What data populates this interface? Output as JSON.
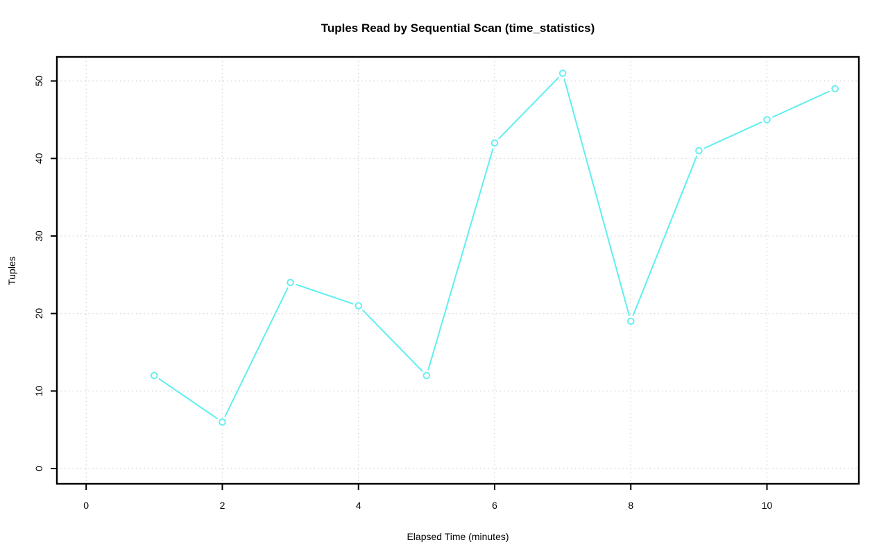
{
  "chart_data": {
    "type": "line",
    "title": "Tuples Read by Sequential Scan (time_statistics)",
    "xlabel": "Elapsed Time (minutes)",
    "ylabel": "Tuples",
    "series": [
      {
        "name": "tuples_read",
        "x": [
          1,
          2,
          3,
          4,
          5,
          6,
          7,
          8,
          9,
          10,
          11
        ],
        "y": [
          12,
          6,
          24,
          21,
          12,
          42,
          51,
          19,
          41,
          45,
          49
        ]
      }
    ],
    "xticks": [
      0,
      2,
      4,
      6,
      8,
      10
    ],
    "yticks": [
      0,
      10,
      20,
      30,
      40,
      50
    ],
    "xlim": [
      -0.43,
      11.35
    ],
    "ylim": [
      -1.97,
      53.1
    ],
    "grid": "dotted",
    "legend_position": "none",
    "marker": "open-circle",
    "line_style": "segments-with-point-gaps",
    "colors": {
      "line": "#5EEFEF",
      "marker_stroke": "#5EEFEF",
      "marker_fill": "#FFFFFF",
      "grid": "#D6D6D6",
      "axis": "#000000",
      "text": "#000000",
      "background": "#FFFFFF"
    }
  }
}
